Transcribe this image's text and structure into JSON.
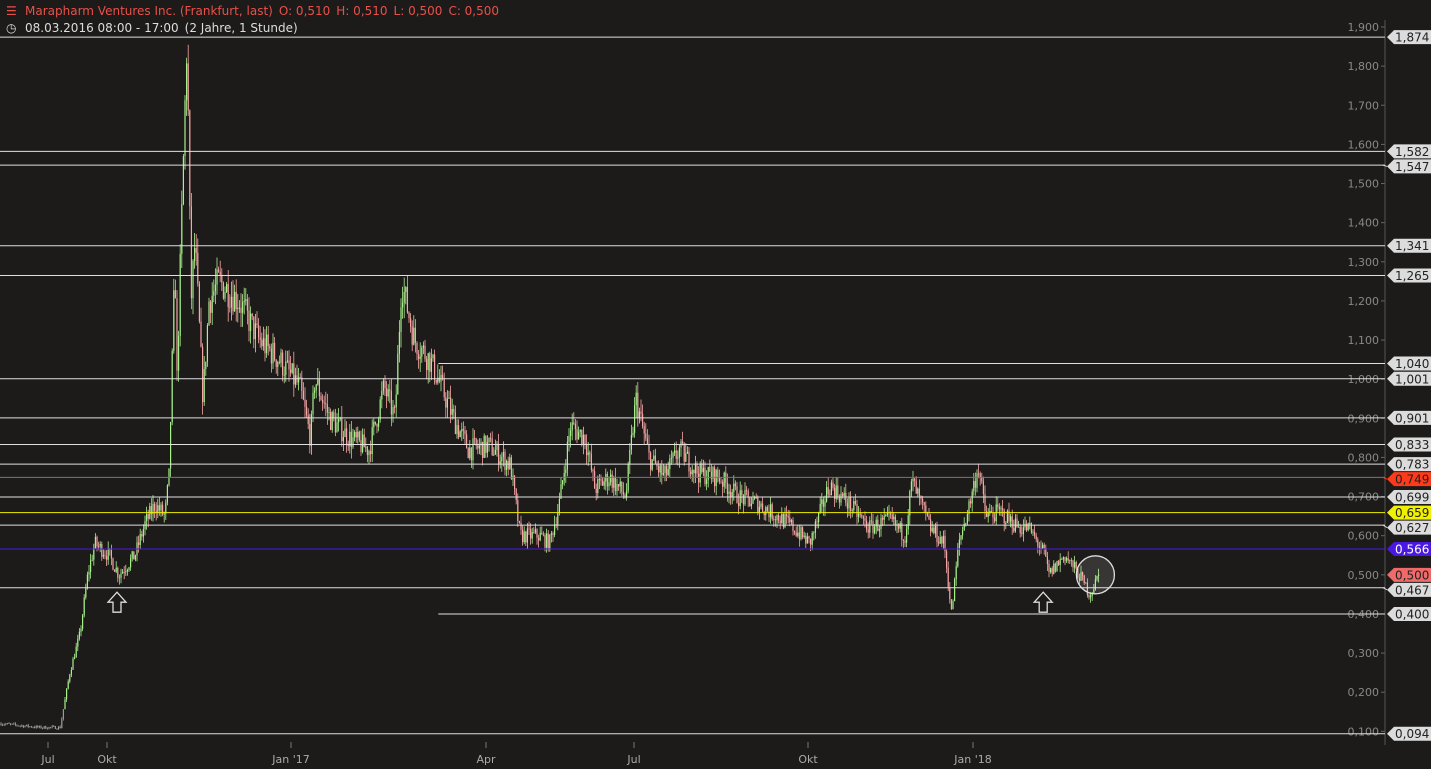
{
  "header": {
    "instrument_icon": "candlestick-settings-icon",
    "title": "Marapharm Ventures Inc. (Frankfurt, last)",
    "open": "O: 0,510",
    "high": "H: 0,510",
    "low": "L: 0,500",
    "close": "C: 0,500",
    "clock_icon": "clock-icon",
    "range": "08.03.2016 08:00 - 17:00",
    "period": "(2 Jahre, 1 Stunde)"
  },
  "chart_data": {
    "type": "candlestick",
    "title": "Marapharm Ventures Inc. (Frankfurt, last)",
    "background": "#1c1b1a",
    "up_color": "#a8f08c",
    "down_color": "#f7a5a5",
    "ylim": [
      0.08,
      1.92
    ],
    "y_ticks": [
      "1,900",
      "1,800",
      "1,700",
      "1,600",
      "1,500",
      "1,400",
      "1,300",
      "1,200",
      "1,100",
      "1,000",
      "0,900",
      "0,800",
      "0,700",
      "0,600",
      "0,500",
      "0,400",
      "0,300",
      "0,200",
      "0,100"
    ],
    "x_ticks": [
      {
        "label": "Jul",
        "date": "2016-07-01"
      },
      {
        "label": "Okt",
        "date": "2016-10-01"
      },
      {
        "label": "Jan '17",
        "date": "2017-01-01"
      },
      {
        "label": "Apr",
        "date": "2017-04-01"
      },
      {
        "label": "Jul",
        "date": "2017-07-01"
      },
      {
        "label": "Okt",
        "date": "2017-10-01"
      },
      {
        "label": "Jan '18",
        "date": "2018-01-01"
      }
    ],
    "price_path": [
      [
        "2016-04-17",
        0.12
      ],
      [
        "2016-06-18",
        0.11
      ],
      [
        "2016-07-20",
        0.11
      ],
      [
        "2016-08-04",
        0.25
      ],
      [
        "2016-08-20",
        0.35
      ],
      [
        "2016-09-01",
        0.5
      ],
      [
        "2016-09-12",
        0.58
      ],
      [
        "2016-10-02",
        0.55
      ],
      [
        "2016-10-07",
        0.5
      ],
      [
        "2016-10-15",
        0.55
      ],
      [
        "2016-10-20",
        0.63
      ],
      [
        "2016-10-25",
        0.68
      ],
      [
        "2016-10-30",
        0.65
      ],
      [
        "2016-11-01",
        0.75
      ],
      [
        "2016-11-04",
        1.3
      ],
      [
        "2016-11-05",
        1.0
      ],
      [
        "2016-11-10",
        1.874
      ],
      [
        "2016-11-12",
        1.2
      ],
      [
        "2016-11-14",
        1.35
      ],
      [
        "2016-11-18",
        0.95
      ],
      [
        "2016-11-21",
        1.2
      ],
      [
        "2016-11-26",
        1.25
      ],
      [
        "2016-12-06",
        1.2
      ],
      [
        "2016-12-16",
        1.1
      ],
      [
        "2016-12-26",
        1.05
      ],
      [
        "2017-01-05",
        0.98
      ],
      [
        "2017-01-10",
        0.85
      ],
      [
        "2017-01-12",
        1.0
      ],
      [
        "2017-01-19",
        0.9
      ],
      [
        "2017-01-28",
        0.85
      ],
      [
        "2017-02-06",
        0.82
      ],
      [
        "2017-02-13",
        0.98
      ],
      [
        "2017-02-18",
        0.9
      ],
      [
        "2017-02-21",
        1.25
      ],
      [
        "2017-02-27",
        1.1
      ],
      [
        "2017-03-06",
        1.05
      ],
      [
        "2017-03-10",
        1.0
      ],
      [
        "2017-03-17",
        0.9
      ],
      [
        "2017-03-24",
        0.82
      ],
      [
        "2017-04-03",
        0.83
      ],
      [
        "2017-04-16",
        0.78
      ],
      [
        "2017-04-22",
        0.6
      ],
      [
        "2017-05-04",
        0.6
      ],
      [
        "2017-05-10",
        0.58
      ],
      [
        "2017-05-16",
        0.68
      ],
      [
        "2017-05-23",
        0.88
      ],
      [
        "2017-06-01",
        0.85
      ],
      [
        "2017-06-07",
        0.72
      ],
      [
        "2017-06-16",
        0.75
      ],
      [
        "2017-06-26",
        0.7
      ],
      [
        "2017-07-02",
        0.95
      ],
      [
        "2017-07-09",
        0.8
      ],
      [
        "2017-07-17",
        0.75
      ],
      [
        "2017-07-25",
        0.82
      ],
      [
        "2017-08-04",
        0.76
      ],
      [
        "2017-08-15",
        0.75
      ],
      [
        "2017-08-25",
        0.7
      ],
      [
        "2017-09-05",
        0.68
      ],
      [
        "2017-09-21",
        0.63
      ],
      [
        "2017-10-02",
        0.58
      ],
      [
        "2017-10-13",
        0.73
      ],
      [
        "2017-10-24",
        0.68
      ],
      [
        "2017-11-04",
        0.62
      ],
      [
        "2017-11-16",
        0.64
      ],
      [
        "2017-11-24",
        0.6
      ],
      [
        "2017-11-28",
        0.74
      ],
      [
        "2017-12-08",
        0.62
      ],
      [
        "2017-12-16",
        0.58
      ],
      [
        "2017-12-20",
        0.4
      ],
      [
        "2017-12-24",
        0.58
      ],
      [
        "2017-12-30",
        0.68
      ],
      [
        "2018-01-04",
        0.78
      ],
      [
        "2018-01-08",
        0.65
      ],
      [
        "2018-01-16",
        0.66
      ],
      [
        "2018-01-27",
        0.62
      ],
      [
        "2018-02-01",
        0.62
      ],
      [
        "2018-02-10",
        0.55
      ],
      [
        "2018-02-12",
        0.5
      ],
      [
        "2018-02-21",
        0.55
      ],
      [
        "2018-03-01",
        0.5
      ],
      [
        "2018-03-07",
        0.45
      ],
      [
        "2018-03-12",
        0.5
      ]
    ],
    "levels": [
      {
        "value": 1.874,
        "label": "1,874",
        "color": "#e0e0e0",
        "from": "2016-04-17"
      },
      {
        "value": 1.582,
        "label": "1,582",
        "color": "#e0e0e0",
        "from": "2016-04-17"
      },
      {
        "value": 1.547,
        "label": "1,547",
        "color": "#e0e0e0",
        "from": "2016-04-17"
      },
      {
        "value": 1.341,
        "label": "1,341",
        "color": "#e0e0e0",
        "from": "2016-04-17"
      },
      {
        "value": 1.265,
        "label": "1,265",
        "color": "#e0e0e0",
        "from": "2016-04-17"
      },
      {
        "value": 1.04,
        "label": "1,040",
        "color": "#e0e0e0",
        "from": "2017-03-10"
      },
      {
        "value": 1.001,
        "label": "1,001",
        "color": "#e0e0e0",
        "from": "2016-04-17"
      },
      {
        "value": 0.901,
        "label": "0,901",
        "color": "#e0e0e0",
        "from": "2016-04-17"
      },
      {
        "value": 0.833,
        "label": "0,833",
        "color": "#e0e0e0",
        "from": "2016-04-17"
      },
      {
        "value": 0.783,
        "label": "0,783",
        "color": "#e0e0e0",
        "from": "2016-04-17"
      },
      {
        "value": 0.749,
        "label": "0,749",
        "color": "#777777",
        "tag": "#ff3a1a",
        "from": "2016-04-17"
      },
      {
        "value": 0.699,
        "label": "0,699",
        "color": "#e0e0e0",
        "from": "2016-04-17"
      },
      {
        "value": 0.659,
        "label": "0,659",
        "color": "#f0f000",
        "tag": "#f0f000",
        "from": "2016-04-17"
      },
      {
        "value": 0.627,
        "label": "0,627",
        "color": "#e0e0e0",
        "from": "2016-04-17"
      },
      {
        "value": 0.566,
        "label": "0,566",
        "color": "#4a18e0",
        "tag": "#4a18e0",
        "text": "#ffffff",
        "from": "2016-04-17"
      },
      {
        "value": 0.5,
        "label": "0,500",
        "color": "none",
        "tag": "#f06a6a",
        "from": "2016-04-17"
      },
      {
        "value": 0.467,
        "label": "0,467",
        "color": "#e0e0e0",
        "from": "2016-04-17"
      },
      {
        "value": 0.4,
        "label": "0,400",
        "color": "#e0e0e0",
        "from": "2017-03-10"
      },
      {
        "value": 0.094,
        "label": "0,094",
        "color": "#e0e0e0",
        "from": "2016-04-17"
      }
    ],
    "annotations": [
      {
        "type": "up-arrow",
        "date": "2016-10-06",
        "value": 0.43
      },
      {
        "type": "up-arrow",
        "date": "2018-02-09",
        "value": 0.43
      },
      {
        "type": "circle",
        "date": "2018-03-10",
        "value": 0.5
      }
    ]
  }
}
